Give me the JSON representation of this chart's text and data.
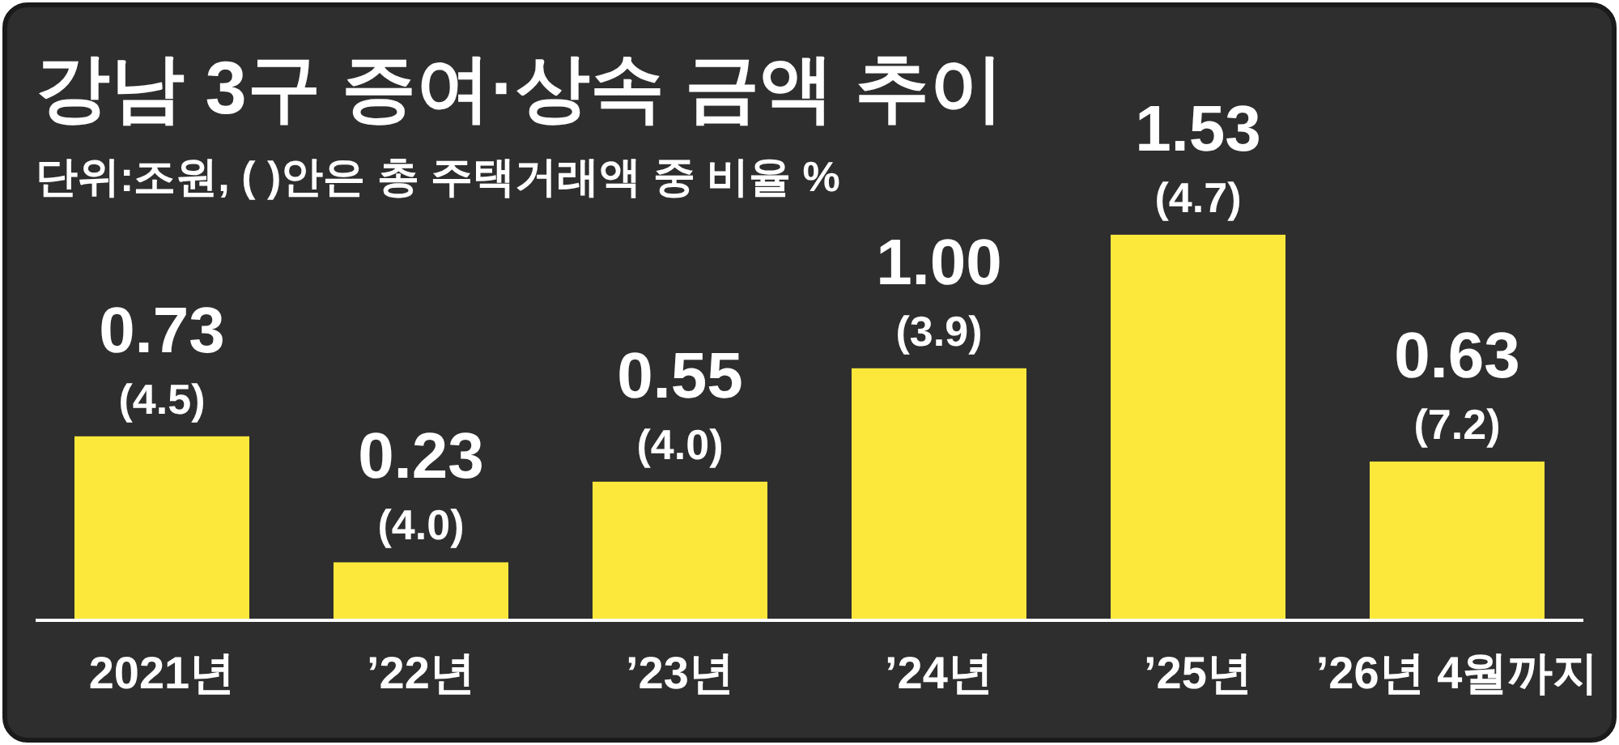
{
  "chart_data": {
    "type": "bar",
    "title": "강남 3구 증여·상속 금액 추이",
    "subtitle": "단위:조원, ( )안은 총 주택거래액 중 비율 %",
    "categories": [
      "2021년",
      "’22년",
      "’23년",
      "’24년",
      "’25년",
      "’26년 4월까지"
    ],
    "values": [
      0.73,
      0.23,
      0.55,
      1.0,
      1.53,
      0.63
    ],
    "color": "#fbe83b",
    "value_labels": [
      "0.73",
      "0.23",
      "0.55",
      "1.00",
      "1.53",
      "0.63"
    ],
    "annotations": [
      {
        "text": "(4.5)",
        "x": "2021년",
        "y": 0.73
      },
      {
        "text": "(4.0)",
        "x": "’22년",
        "y": 0.23
      },
      {
        "text": "(4.0)",
        "x": "’23년",
        "y": 0.55
      },
      {
        "text": "(3.9)",
        "x": "’24년",
        "y": 1.0
      },
      {
        "text": "(4.7)",
        "x": "’25년",
        "y": 1.53
      },
      {
        "text": "(7.2)",
        "x": "’26년 4월까지",
        "y": 0.63
      }
    ]
  }
}
